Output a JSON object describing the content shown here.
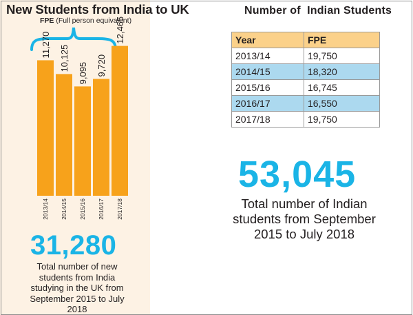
{
  "left": {
    "title": "New Students from India to UK",
    "fpe_label": "FPE",
    "fpe_desc": " (Full person  equivalent)",
    "total": "31,280",
    "caption": "Total number of new students from India studying in the UK from September 2015 to July 2018"
  },
  "right": {
    "title": "Number of  Indian Students",
    "table": {
      "headers": [
        "Year",
        "FPE"
      ],
      "rows": [
        [
          "2013/14",
          "19,750"
        ],
        [
          "2014/15",
          "18,320"
        ],
        [
          "2015/16",
          "16,745"
        ],
        [
          "2016/17",
          "16,550"
        ],
        [
          "2017/18",
          "19,750"
        ]
      ]
    },
    "total": "53,045",
    "caption": "Total number of Indian students from September 2015 to July 2018"
  },
  "colors": {
    "bar": "#f7a21b",
    "accent": "#1ab4e6",
    "panel": "#fdf2e4",
    "table_header": "#fbd18a",
    "table_highlight": "#acd9ef"
  },
  "chart_data": {
    "type": "bar",
    "categories": [
      "2013/14",
      "2014/15",
      "2015/16",
      "2016/17",
      "2017/18"
    ],
    "values": [
      11270,
      10125,
      9095,
      9720,
      12465
    ],
    "value_labels": [
      "11,270",
      "10,125",
      "9,095",
      "9,720",
      "12,465"
    ],
    "title": "New Students from India to UK",
    "ylim": [
      0,
      25000
    ],
    "grid": false,
    "legend": "none"
  }
}
